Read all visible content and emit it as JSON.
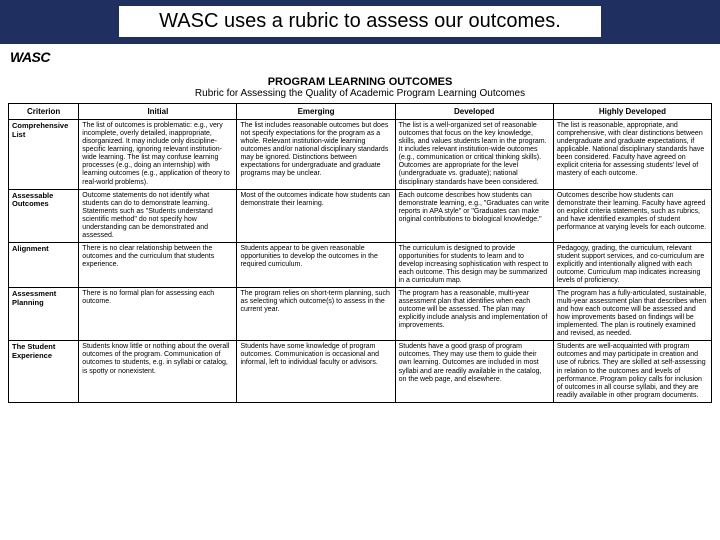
{
  "title": "WASC uses a rubric to assess our outcomes.",
  "logo_text": "WASC",
  "header_main": "PROGRAM LEARNING OUTCOMES",
  "header_sub": "Rubric for Assessing the Quality of Academic Program Learning Outcomes",
  "columns": [
    "Criterion",
    "Initial",
    "Emerging",
    "Developed",
    "Highly Developed"
  ],
  "rows": [
    {
      "criterion": "Comprehensive List",
      "initial": "The list of outcomes is problematic: e.g., very incomplete, overly detailed, inappropriate, disorganized. It may include only discipline-specific learning, ignoring relevant institution-wide learning. The list may confuse learning processes (e.g., doing an internship) with learning outcomes (e.g., application of theory to real-world problems).",
      "emerging": "The list includes reasonable outcomes but does not specify expectations for the program as a whole. Relevant institution-wide learning outcomes and/or national disciplinary standards may be ignored. Distinctions between expectations for undergraduate and graduate programs may be unclear.",
      "developed": "The list is a well-organized set of reasonable outcomes that focus on the key knowledge, skills, and values students learn in the program. It includes relevant institution-wide outcomes (e.g., communication or critical thinking skills). Outcomes are appropriate for the level (undergraduate vs. graduate); national disciplinary standards have been considered.",
      "highly": "The list is reasonable, appropriate, and comprehensive, with clear distinctions between undergraduate and graduate expectations, if applicable. National disciplinary standards have been considered. Faculty have agreed on explicit criteria for assessing students' level of mastery of each outcome."
    },
    {
      "criterion": "Assessable Outcomes",
      "initial": "Outcome statements do not identify what students can do to demonstrate learning. Statements such as \"Students understand scientific method\" do not specify how understanding can be demonstrated and assessed.",
      "emerging": "Most of the outcomes indicate how students can demonstrate their learning.",
      "developed": "Each outcome describes how students can demonstrate learning, e.g., \"Graduates can write reports in APA style\" or \"Graduates can make original contributions to biological knowledge.\"",
      "highly": "Outcomes describe how students can demonstrate their learning. Faculty have agreed on explicit criteria statements, such as rubrics, and have identified examples of student performance at varying levels for each outcome."
    },
    {
      "criterion": "Alignment",
      "initial": "There is no clear relationship between the outcomes and the curriculum that students experience.",
      "emerging": "Students appear to be given reasonable opportunities to develop the outcomes in the required curriculum.",
      "developed": "The curriculum is designed to provide opportunities for students to learn and to develop increasing sophistication with respect to each outcome. This design may be summarized in a curriculum map.",
      "highly": "Pedagogy, grading, the curriculum, relevant student support services, and co-curriculum are explicitly and intentionally aligned with each outcome. Curriculum map indicates increasing levels of proficiency."
    },
    {
      "criterion": "Assessment Planning",
      "initial": "There is no formal plan for assessing each outcome.",
      "emerging": "The program relies on short-term planning, such as selecting which outcome(s) to assess in the current year.",
      "developed": "The program has a reasonable, multi-year assessment plan that identifies when each outcome will be assessed. The plan may explicitly include analysis and implementation of improvements.",
      "highly": "The program has a fully-articulated, sustainable, multi-year assessment plan that describes when and how each outcome will be assessed and how improvements based on findings will be implemented. The plan is routinely examined and revised, as needed."
    },
    {
      "criterion": "The Student Experience",
      "initial": "Students know little or nothing about the overall outcomes of the program. Communication of outcomes to students, e.g. in syllabi or catalog, is spotty or nonexistent.",
      "emerging": "Students have some knowledge of program outcomes. Communication is occasional and informal, left to individual faculty or advisors.",
      "developed": "Students have a good grasp of program outcomes. They may use them to guide their own learning. Outcomes are included in most syllabi and are readily available in the catalog, on the web page, and elsewhere.",
      "highly": "Students are well-acquainted with program outcomes and may participate in creation and use of rubrics. They are skilled at self-assessing in relation to the outcomes and levels of performance. Program policy calls for inclusion of outcomes in all course syllabi, and they are readily available in other program documents."
    }
  ]
}
